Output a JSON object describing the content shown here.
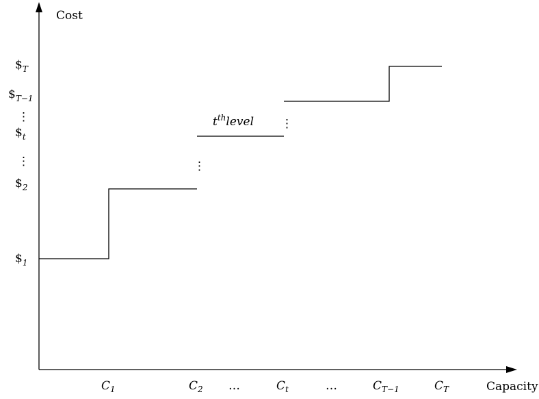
{
  "axes": {
    "y_label": "Cost",
    "x_label": "Capacity"
  },
  "y_ticks": [
    {
      "id": "T",
      "main": "$",
      "sub": "T"
    },
    {
      "id": "T-1",
      "main": "$",
      "sub": "T−1"
    },
    {
      "id": "vdots-top",
      "main": "⋮",
      "sub": ""
    },
    {
      "id": "t",
      "main": "$",
      "sub": "t"
    },
    {
      "id": "vdots-mid",
      "main": "⋮",
      "sub": ""
    },
    {
      "id": "2",
      "main": "$",
      "sub": "2"
    },
    {
      "id": "1",
      "main": "$",
      "sub": "1"
    }
  ],
  "x_ticks": [
    {
      "id": "1",
      "main": "C",
      "sub": "1"
    },
    {
      "id": "2",
      "main": "C",
      "sub": "2"
    },
    {
      "id": "dots-a",
      "main": "…",
      "sub": ""
    },
    {
      "id": "t",
      "main": "C",
      "sub": "t"
    },
    {
      "id": "dots-b",
      "main": "…",
      "sub": ""
    },
    {
      "id": "T-1",
      "main": "C",
      "sub": "T−1"
    },
    {
      "id": "T",
      "main": "C",
      "sub": "T"
    }
  ],
  "annotation": {
    "base": "t",
    "sup": "th",
    "rest": "level"
  },
  "gap_markers": [
    "⋮",
    "⋮"
  ],
  "colors": {
    "line": "#000000",
    "background": "#ffffff"
  }
}
